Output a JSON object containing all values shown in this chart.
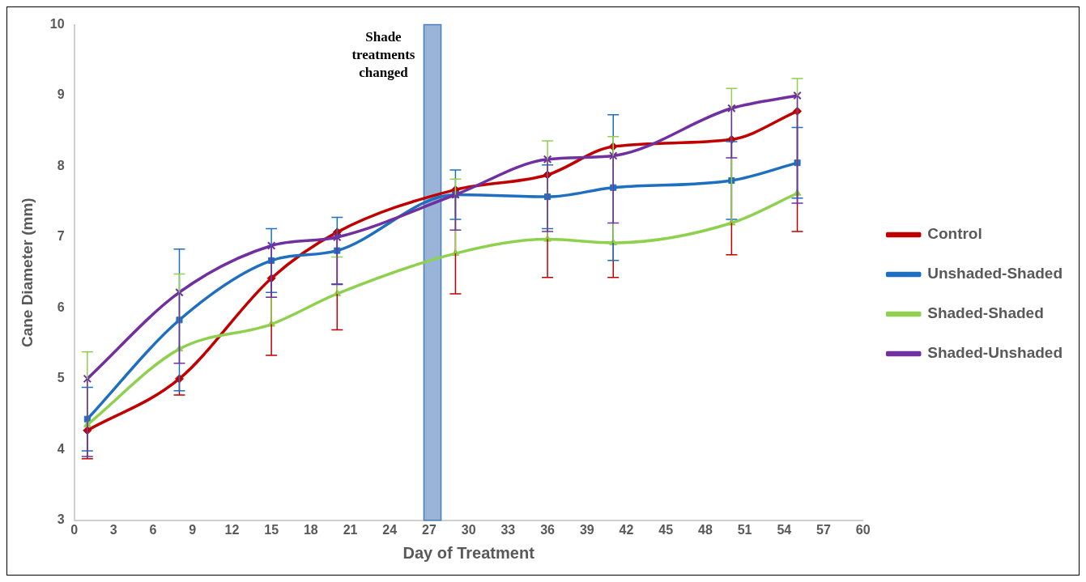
{
  "chart_data": {
    "type": "line",
    "xlabel": "Day of Treatment",
    "ylabel": "Cane Diameter (mm)",
    "x": [
      1,
      8,
      15,
      20,
      29,
      36,
      41,
      50,
      55
    ],
    "series": [
      {
        "name": "Control",
        "color": "#c00000",
        "marker": "diamond",
        "values": [
          4.27,
          5.0,
          6.42,
          7.07,
          7.67,
          7.88,
          8.28,
          8.38,
          8.78
        ],
        "errors": [
          [
            3.87,
            4.27
          ],
          [
            4.77,
            5.0
          ],
          [
            5.33,
            6.42
          ],
          [
            5.69,
            7.07
          ],
          [
            6.2,
            7.67
          ],
          [
            6.43,
            7.88
          ],
          [
            6.43,
            8.28
          ],
          [
            6.75,
            8.38
          ],
          [
            7.08,
            8.78
          ]
        ]
      },
      {
        "name": "Unshaded-Shaded",
        "color": "#1f6fc0",
        "marker": "square",
        "values": [
          4.43,
          5.83,
          6.67,
          6.81,
          7.6,
          7.57,
          7.7,
          7.8,
          8.05
        ],
        "errors": [
          0.45,
          1.0,
          0.45,
          0.47,
          0.35,
          0.45,
          1.03,
          0.55,
          0.5
        ]
      },
      {
        "name": "Shaded-Shaded",
        "color": "#8fd14f",
        "marker": "triangle",
        "values": [
          4.35,
          5.42,
          5.77,
          6.2,
          6.77,
          6.97,
          6.92,
          7.2,
          7.62
        ],
        "errors": [
          [
            4.35,
            5.38
          ],
          [
            5.42,
            6.48
          ],
          [
            5.77,
            6.15
          ],
          [
            6.2,
            6.72
          ],
          [
            6.77,
            7.82
          ],
          [
            6.97,
            8.36
          ],
          [
            6.92,
            8.42
          ],
          [
            7.2,
            9.1
          ],
          [
            7.62,
            9.24
          ]
        ]
      },
      {
        "name": "Shaded-Unshaded",
        "color": "#7030a0",
        "marker": "cross",
        "values": [
          5.0,
          6.22,
          6.88,
          7.0,
          7.6,
          8.1,
          8.15,
          8.82,
          9.0
        ],
        "errors": [
          [
            3.9,
            5.0
          ],
          [
            5.22,
            6.22
          ],
          [
            6.15,
            6.88
          ],
          [
            6.33,
            7.0
          ],
          [
            7.1,
            7.6
          ],
          [
            7.08,
            8.1
          ],
          [
            7.2,
            8.15
          ],
          [
            8.12,
            8.82
          ],
          [
            7.48,
            9.0
          ]
        ]
      }
    ],
    "xlim": [
      0,
      60
    ],
    "xticks": [
      0,
      3,
      6,
      9,
      12,
      15,
      18,
      21,
      24,
      27,
      30,
      33,
      36,
      39,
      42,
      45,
      48,
      51,
      54,
      57,
      60
    ],
    "ylim": [
      3,
      10
    ],
    "yticks": [
      3,
      4,
      5,
      6,
      7,
      8,
      9,
      10
    ],
    "bands": [
      {
        "axis": "x",
        "from": 26.6,
        "to": 27.9,
        "label": "Shade treatments changed",
        "color": "#9ab4d8"
      }
    ],
    "grid": false,
    "legend": "right"
  }
}
